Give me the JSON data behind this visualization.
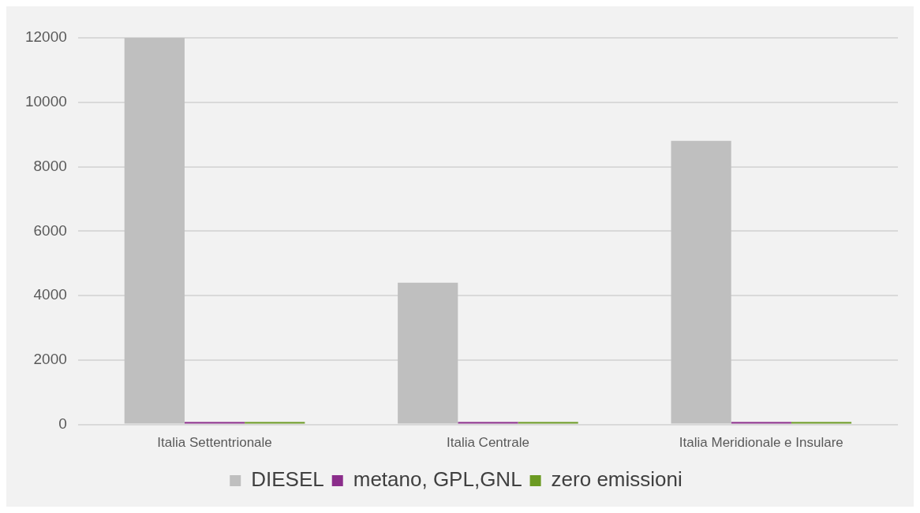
{
  "chart_data": {
    "type": "bar",
    "categories": [
      "Italia Settentrionale",
      "Italia Centrale",
      "Italia Meridionale e Insulare"
    ],
    "series": [
      {
        "name": "DIESEL",
        "color": "#bfbfbf",
        "values": [
          12000,
          4400,
          8800
        ]
      },
      {
        "name": "metano, GPL,GNL",
        "color": "#8b2d8b",
        "values": [
          0,
          0,
          0
        ]
      },
      {
        "name": "zero emissioni",
        "color": "#6b9a22",
        "values": [
          0,
          0,
          0
        ]
      }
    ],
    "ylim": [
      0,
      12000
    ],
    "yticks": [
      0,
      2000,
      4000,
      6000,
      8000,
      10000,
      12000
    ],
    "grid": "y",
    "legend": "bottom"
  }
}
